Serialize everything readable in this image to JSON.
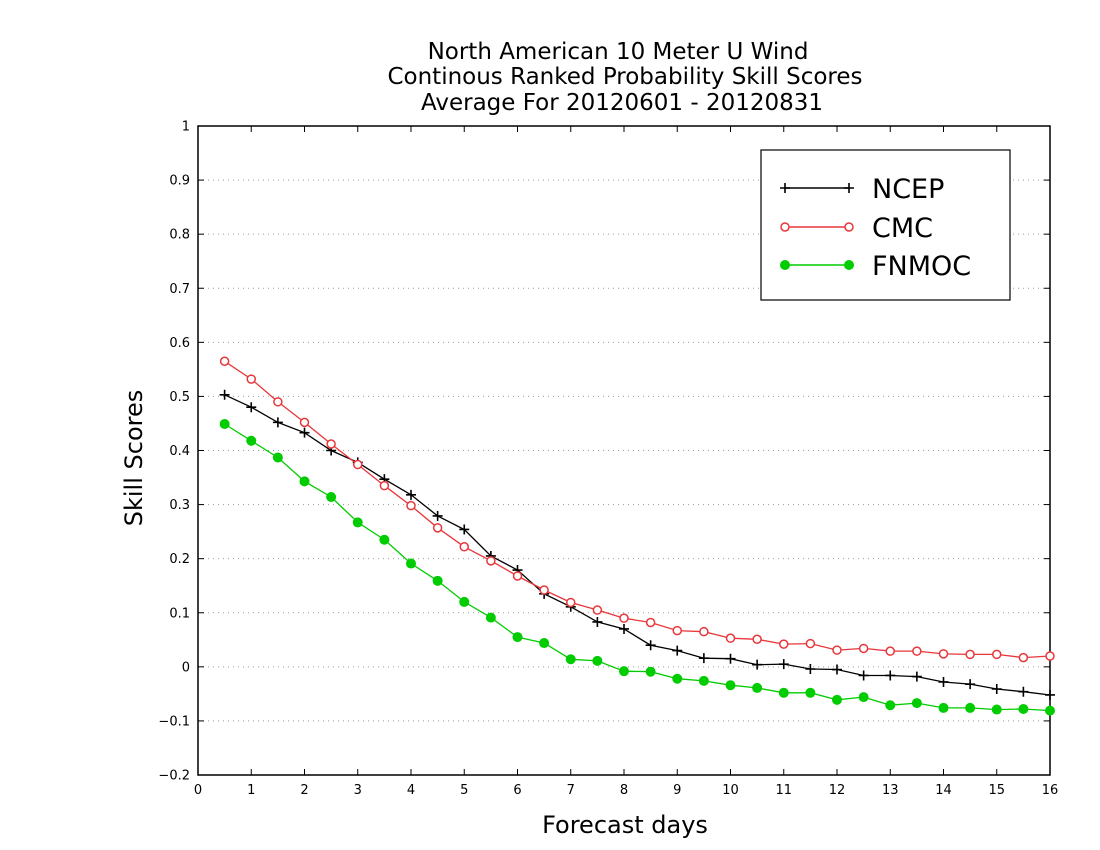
{
  "chart_data": {
    "type": "line",
    "title": [
      "North American 10 Meter U Wind",
      "Continous Ranked Probability Skill Scores",
      "Average For 20120601 - 20120831"
    ],
    "xlabel": "Forecast days",
    "ylabel": "Skill Scores",
    "xlim": [
      0,
      16
    ],
    "ylim": [
      -0.2,
      1
    ],
    "xticks": [
      0,
      1,
      2,
      3,
      4,
      5,
      6,
      7,
      8,
      9,
      10,
      11,
      12,
      13,
      14,
      15,
      16
    ],
    "yticks": [
      -0.2,
      -0.1,
      0,
      0.1,
      0.2,
      0.3,
      0.4,
      0.5,
      0.6,
      0.7,
      0.8,
      0.9,
      1
    ],
    "ytick_labels": [
      "−0.2",
      "−0.1",
      "0",
      "0.1",
      "0.2",
      "0.3",
      "0.4",
      "0.5",
      "0.6",
      "0.7",
      "0.8",
      "0.9",
      "1"
    ],
    "grid": "horizontal dotted",
    "legend_position": "top-right",
    "x": [
      0.5,
      1,
      1.5,
      2,
      2.5,
      3,
      3.5,
      4,
      4.5,
      5,
      5.5,
      6,
      6.5,
      7,
      7.5,
      8,
      8.5,
      9,
      9.5,
      10,
      10.5,
      11,
      11.5,
      12,
      12.5,
      13,
      13.5,
      14,
      14.5,
      15,
      15.5,
      16
    ],
    "series": [
      {
        "name": "NCEP",
        "color": "#000000",
        "marker": "plus",
        "values": [
          0.503,
          0.48,
          0.452,
          0.433,
          0.4,
          0.378,
          0.347,
          0.318,
          0.279,
          0.254,
          0.205,
          0.179,
          0.135,
          0.111,
          0.083,
          0.07,
          0.04,
          0.03,
          0.016,
          0.015,
          0.004,
          0.005,
          -0.004,
          -0.005,
          -0.016,
          -0.016,
          -0.018,
          -0.028,
          -0.032,
          -0.041,
          -0.046,
          -0.052
        ]
      },
      {
        "name": "CMC",
        "color": "#e8363a",
        "marker": "open-circle",
        "values": [
          0.565,
          0.532,
          0.49,
          0.452,
          0.412,
          0.374,
          0.335,
          0.298,
          0.257,
          0.222,
          0.196,
          0.168,
          0.142,
          0.119,
          0.105,
          0.09,
          0.082,
          0.067,
          0.065,
          0.053,
          0.051,
          0.042,
          0.043,
          0.031,
          0.034,
          0.029,
          0.029,
          0.024,
          0.023,
          0.023,
          0.017,
          0.02
        ]
      },
      {
        "name": "FNMOC",
        "color": "#00cc00",
        "marker": "filled-circle",
        "values": [
          0.449,
          0.418,
          0.387,
          0.343,
          0.314,
          0.267,
          0.235,
          0.191,
          0.159,
          0.12,
          0.091,
          0.055,
          0.044,
          0.014,
          0.011,
          -0.008,
          -0.009,
          -0.022,
          -0.026,
          -0.034,
          -0.039,
          -0.048,
          -0.048,
          -0.061,
          -0.056,
          -0.071,
          -0.067,
          -0.076,
          -0.076,
          -0.079,
          -0.078,
          -0.081
        ]
      }
    ]
  }
}
